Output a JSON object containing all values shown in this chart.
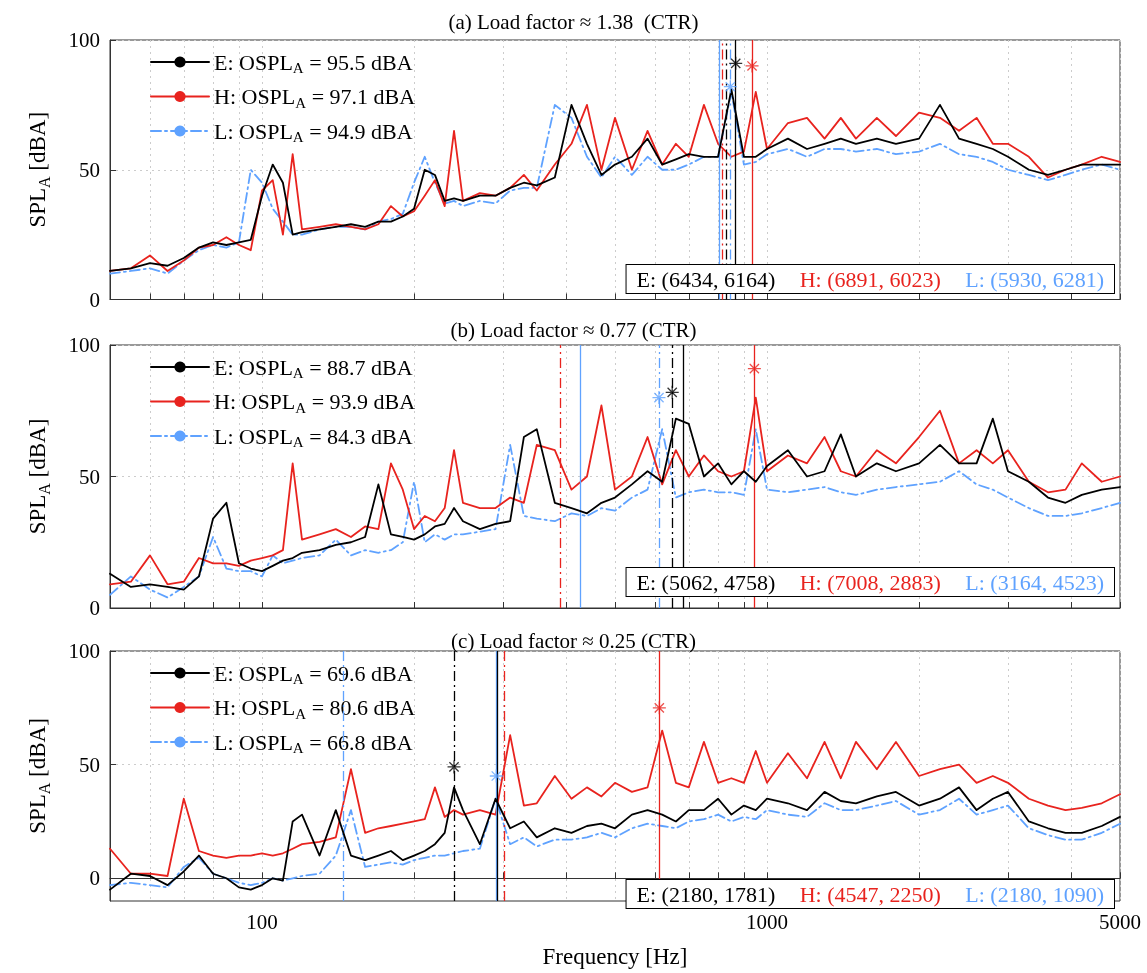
{
  "chart_data": [
    {
      "type": "line",
      "title": "(a) Load factor ≈ 1.38  (CTR)",
      "ylabel": "SPL$_{A}$ [dBA]",
      "x": [
        50,
        55,
        60,
        65,
        70,
        75,
        80,
        85,
        90,
        95,
        100,
        105,
        110,
        115,
        120,
        130,
        140,
        150,
        160,
        170,
        180,
        190,
        200,
        210,
        220,
        230,
        240,
        250,
        270,
        290,
        310,
        330,
        350,
        380,
        410,
        440,
        470,
        500,
        540,
        580,
        620,
        660,
        700,
        750,
        800,
        850,
        900,
        950,
        1000,
        1100,
        1200,
        1300,
        1400,
        1500,
        1650,
        1800,
        2000,
        2200,
        2400,
        2600,
        2800,
        3000,
        3300,
        3600,
        3900,
        4200,
        4600,
        5000
      ],
      "series": [
        {
          "name": "E: OSPL$_{A}$ = 95.5 dBA",
          "color": "#000000",
          "line_style": "solid",
          "values": [
            11,
            12,
            14,
            13,
            16,
            20,
            22,
            21,
            22,
            23,
            40,
            52,
            45,
            25,
            26,
            27,
            28,
            29,
            28,
            30,
            30,
            32,
            35,
            50,
            48,
            38,
            39,
            38,
            40,
            40,
            43,
            45,
            44,
            47,
            75,
            60,
            48,
            52,
            55,
            62,
            52,
            54,
            56,
            55,
            55,
            81,
            55,
            55,
            58,
            62,
            58,
            60,
            62,
            60,
            62,
            60,
            62,
            75,
            62,
            60,
            58,
            55,
            50,
            48,
            50,
            52,
            52,
            52
          ]
        },
        {
          "name": "H: OSPL$_{A}$ = 97.1 dBA",
          "color": "#e8231e",
          "line_style": "solid",
          "values": [
            11,
            12,
            17,
            11,
            15,
            20,
            21,
            24,
            21,
            19,
            42,
            46,
            25,
            56,
            27,
            28,
            29,
            28,
            27,
            29,
            36,
            32,
            34,
            40,
            46,
            36,
            65,
            38,
            41,
            40,
            43,
            48,
            42,
            52,
            60,
            75,
            50,
            70,
            50,
            65,
            52,
            60,
            55,
            75,
            60,
            55,
            57,
            80,
            58,
            68,
            70,
            62,
            70,
            62,
            70,
            63,
            72,
            70,
            65,
            70,
            60,
            60,
            55,
            47,
            50,
            52,
            55,
            53
          ]
        },
        {
          "name": "L: OSPL$_{A}$ = 94.9 dBA",
          "color": "#5fa2ff",
          "line_style": "dashed",
          "values": [
            10,
            11,
            12,
            10,
            15,
            19,
            21,
            20,
            22,
            50,
            45,
            35,
            30,
            25,
            25,
            27,
            28,
            28,
            27,
            30,
            31,
            33,
            45,
            55,
            45,
            37,
            38,
            36,
            38,
            37,
            42,
            43,
            43,
            75,
            70,
            55,
            47,
            55,
            48,
            55,
            50,
            50,
            52,
            55,
            55,
            80,
            52,
            53,
            56,
            58,
            55,
            58,
            58,
            57,
            58,
            56,
            57,
            60,
            56,
            55,
            53,
            50,
            48,
            46,
            48,
            50,
            52,
            50
          ]
        },
        {
          "type": "scatter",
          "color": "#000000",
          "marker": "star",
          "x": [
            867
          ],
          "values": [
            91
          ]
        },
        {
          "type": "scatter",
          "color": "#e8231e",
          "marker": "star",
          "x": [
            934
          ],
          "values": [
            90
          ]
        },
        {
          "type": "scatter",
          "color": "#5fa2ff",
          "marker": "star",
          "x": [
            846
          ],
          "values": [
            82
          ]
        }
      ],
      "ref_lines": [
        {
          "axis": "x",
          "value": 805,
          "color": "#5fa2ff",
          "line_style": "solid"
        },
        {
          "axis": "x",
          "value": 815,
          "color": "#e8231e",
          "line_style": "dashed"
        },
        {
          "axis": "x",
          "value": 832,
          "color": "#000000",
          "line_style": "dashed"
        },
        {
          "axis": "x",
          "value": 846,
          "color": "#5fa2ff",
          "line_style": "dashed"
        },
        {
          "axis": "x",
          "value": 867,
          "color": "#000000",
          "line_style": "solid"
        },
        {
          "axis": "x",
          "value": 934,
          "color": "#e8231e",
          "line_style": "solid"
        }
      ],
      "annotations": [
        "E: (6434, 6164)",
        "H: (6891, 6023)",
        "L: (5930, 6281)"
      ],
      "log": "x",
      "xlim": [
        50,
        5000
      ],
      "xticks": [
        {
          "value": 60,
          "label": null
        },
        {
          "value": 70,
          "label": null
        },
        {
          "value": 80,
          "label": null
        },
        {
          "value": 90,
          "label": null
        },
        100,
        {
          "value": 200,
          "label": null
        },
        {
          "value": 300,
          "label": null
        },
        {
          "value": 400,
          "label": null
        },
        {
          "value": 500,
          "label": null
        },
        {
          "value": 600,
          "label": null
        },
        {
          "value": 700,
          "label": null
        },
        {
          "value": 800,
          "label": null
        },
        {
          "value": 900,
          "label": null
        },
        1000,
        {
          "value": 2000,
          "label": null
        },
        {
          "value": 3000,
          "label": null
        },
        {
          "value": 4000,
          "label": null
        },
        5000
      ],
      "ylim": [
        0,
        100
      ],
      "yticks": [
        0,
        50,
        100
      ],
      "tick_labels": "y",
      "grid": true,
      "legend": "top left",
      "marker": "none"
    },
    {
      "type": "line",
      "title": "(b) Load factor ≈ 0.77 (CTR)",
      "ylabel": "SPL$_{A}$ [dBA]",
      "x": [
        50,
        55,
        60,
        65,
        70,
        75,
        80,
        85,
        90,
        95,
        100,
        105,
        110,
        115,
        120,
        130,
        140,
        150,
        160,
        170,
        180,
        190,
        200,
        210,
        220,
        230,
        240,
        250,
        270,
        290,
        310,
        330,
        350,
        380,
        410,
        440,
        470,
        500,
        540,
        580,
        620,
        660,
        700,
        750,
        800,
        850,
        900,
        950,
        1000,
        1100,
        1200,
        1300,
        1400,
        1500,
        1650,
        1800,
        2000,
        2200,
        2400,
        2600,
        2800,
        3000,
        3300,
        3600,
        3900,
        4200,
        4600,
        5000
      ],
      "series": [
        {
          "name": "E: OSPL$_{A}$ = 88.7 dBA",
          "color": "#000000",
          "line_style": "solid",
          "values": [
            13,
            8,
            9,
            8,
            7,
            12,
            34,
            40,
            17,
            15,
            14,
            16,
            18,
            19,
            21,
            22,
            24,
            25,
            27,
            47,
            28,
            27,
            26,
            28,
            31,
            32,
            38,
            33,
            30,
            32,
            33,
            65,
            68,
            40,
            38,
            36,
            40,
            42,
            47,
            52,
            48,
            72,
            70,
            50,
            55,
            47,
            52,
            48,
            54,
            60,
            50,
            52,
            66,
            50,
            55,
            52,
            55,
            62,
            55,
            55,
            72,
            52,
            48,
            42,
            40,
            43,
            45,
            46
          ]
        },
        {
          "name": "H: OSPL$_{A}$ = 93.9 dBA",
          "color": "#e8231e",
          "line_style": "solid",
          "values": [
            9,
            10,
            20,
            9,
            10,
            19,
            17,
            17,
            16,
            18,
            19,
            20,
            22,
            55,
            26,
            28,
            30,
            27,
            31,
            30,
            55,
            45,
            30,
            35,
            33,
            38,
            60,
            40,
            38,
            38,
            42,
            40,
            62,
            60,
            45,
            50,
            77,
            45,
            50,
            65,
            47,
            60,
            50,
            58,
            52,
            50,
            52,
            80,
            52,
            58,
            55,
            65,
            52,
            50,
            60,
            55,
            65,
            75,
            55,
            60,
            55,
            60,
            48,
            44,
            45,
            55,
            48,
            50
          ]
        },
        {
          "name": "L: OSPL$_{A}$ = 84.3 dBA",
          "color": "#5fa2ff",
          "line_style": "dashed",
          "values": [
            5,
            12,
            7,
            4,
            8,
            12,
            27,
            15,
            14,
            14,
            12,
            20,
            17,
            18,
            19,
            20,
            26,
            20,
            22,
            21,
            22,
            25,
            48,
            25,
            28,
            26,
            28,
            28,
            29,
            30,
            62,
            35,
            34,
            33,
            36,
            35,
            38,
            37,
            42,
            45,
            68,
            42,
            44,
            45,
            44,
            44,
            43,
            68,
            45,
            44,
            45,
            46,
            44,
            43,
            45,
            46,
            47,
            48,
            52,
            47,
            45,
            42,
            38,
            35,
            35,
            36,
            38,
            40
          ]
        },
        {
          "type": "scatter",
          "color": "#000000",
          "marker": "star",
          "x": [
            649
          ],
          "values": [
            82
          ]
        },
        {
          "type": "scatter",
          "color": "#e8231e",
          "marker": "star",
          "x": [
            944
          ],
          "values": [
            91
          ]
        },
        {
          "type": "scatter",
          "color": "#5fa2ff",
          "marker": "star",
          "x": [
            611
          ],
          "values": [
            80
          ]
        }
      ],
      "ref_lines": [
        {
          "axis": "x",
          "value": 389,
          "color": "#e8231e",
          "line_style": "dashed"
        },
        {
          "axis": "x",
          "value": 426,
          "color": "#5fa2ff",
          "line_style": "solid"
        },
        {
          "axis": "x",
          "value": 611,
          "color": "#5fa2ff",
          "line_style": "dashed"
        },
        {
          "axis": "x",
          "value": 649,
          "color": "#000000",
          "line_style": "dashed"
        },
        {
          "axis": "x",
          "value": 683,
          "color": "#000000",
          "line_style": "solid"
        },
        {
          "axis": "x",
          "value": 944,
          "color": "#e8231e",
          "line_style": "solid"
        }
      ],
      "annotations": [
        "E: (5062, 4758)",
        "H: (7008, 2883)",
        "L: (3164, 4523)"
      ],
      "log": "x",
      "xlim": [
        50,
        5000
      ],
      "xticks": [
        {
          "value": 60,
          "label": null
        },
        {
          "value": 70,
          "label": null
        },
        {
          "value": 80,
          "label": null
        },
        {
          "value": 90,
          "label": null
        },
        100,
        {
          "value": 200,
          "label": null
        },
        {
          "value": 300,
          "label": null
        },
        {
          "value": 400,
          "label": null
        },
        {
          "value": 500,
          "label": null
        },
        {
          "value": 600,
          "label": null
        },
        {
          "value": 700,
          "label": null
        },
        {
          "value": 800,
          "label": null
        },
        {
          "value": 900,
          "label": null
        },
        1000,
        {
          "value": 2000,
          "label": null
        },
        {
          "value": 3000,
          "label": null
        },
        {
          "value": 4000,
          "label": null
        },
        5000
      ],
      "ylim": [
        0,
        100
      ],
      "yticks": [
        0,
        50,
        100
      ],
      "tick_labels": "y",
      "grid": true,
      "legend": "top left",
      "marker": "none"
    },
    {
      "type": "line",
      "title": "(c) Load factor ≈ 0.25 (CTR)",
      "xlabel": "Frequency [Hz]",
      "ylabel": "SPL$_{A}$ [dBA]",
      "x": [
        50,
        55,
        60,
        65,
        70,
        75,
        80,
        85,
        90,
        95,
        100,
        105,
        110,
        115,
        120,
        130,
        140,
        150,
        160,
        170,
        180,
        190,
        200,
        210,
        220,
        230,
        240,
        250,
        270,
        290,
        310,
        330,
        350,
        380,
        410,
        440,
        470,
        500,
        540,
        580,
        620,
        660,
        700,
        750,
        800,
        850,
        900,
        950,
        1000,
        1100,
        1200,
        1300,
        1400,
        1500,
        1650,
        1800,
        2000,
        2200,
        2400,
        2600,
        2800,
        3000,
        3300,
        3600,
        3900,
        4200,
        4600,
        5000
      ],
      "series": [
        {
          "name": "E: OSPL$_{A}$ = 69.6 dBA",
          "color": "#000000",
          "line_style": "solid",
          "values": [
            -5,
            2,
            1,
            -3,
            3,
            10,
            2,
            0,
            -4,
            -5,
            -3,
            0,
            -1,
            25,
            28,
            10,
            30,
            10,
            8,
            10,
            12,
            8,
            10,
            12,
            15,
            20,
            40,
            30,
            15,
            35,
            22,
            25,
            18,
            22,
            20,
            23,
            24,
            22,
            28,
            30,
            28,
            25,
            30,
            30,
            35,
            28,
            32,
            30,
            35,
            33,
            30,
            38,
            34,
            33,
            36,
            38,
            32,
            35,
            40,
            30,
            35,
            38,
            25,
            22,
            20,
            20,
            23,
            27
          ]
        },
        {
          "name": "H: OSPL$_{A}$ = 80.6 dBA",
          "color": "#e8231e",
          "line_style": "solid",
          "values": [
            13,
            2,
            2,
            1,
            35,
            12,
            10,
            9,
            10,
            10,
            11,
            10,
            11,
            13,
            15,
            16,
            18,
            48,
            20,
            22,
            23,
            24,
            25,
            26,
            40,
            27,
            30,
            28,
            30,
            28,
            63,
            32,
            33,
            45,
            35,
            40,
            36,
            42,
            38,
            40,
            65,
            42,
            40,
            60,
            42,
            44,
            42,
            56,
            42,
            55,
            44,
            60,
            44,
            60,
            48,
            60,
            45,
            48,
            50,
            42,
            45,
            42,
            35,
            32,
            30,
            31,
            33,
            37
          ]
        },
        {
          "name": "L: OSPL$_{A}$ = 66.8 dBA",
          "color": "#5fa2ff",
          "line_style": "dashed",
          "values": [
            -3,
            -2,
            -3,
            -4,
            5,
            9,
            2,
            0,
            -2,
            -3,
            -2,
            0,
            -1,
            0,
            1,
            2,
            10,
            30,
            5,
            6,
            7,
            6,
            8,
            9,
            10,
            10,
            11,
            12,
            13,
            35,
            15,
            18,
            14,
            17,
            17,
            18,
            20,
            18,
            22,
            24,
            23,
            22,
            25,
            26,
            28,
            25,
            27,
            26,
            30,
            28,
            27,
            33,
            30,
            30,
            32,
            34,
            28,
            30,
            35,
            28,
            30,
            32,
            22,
            19,
            17,
            17,
            20,
            24
          ]
        },
        {
          "type": "scatter",
          "color": "#000000",
          "marker": "star",
          "x": [
            240
          ],
          "values": [
            49
          ]
        },
        {
          "type": "scatter",
          "color": "#e8231e",
          "marker": "star",
          "x": [
            612
          ],
          "values": [
            75
          ]
        },
        {
          "type": "scatter",
          "color": "#5fa2ff",
          "marker": "star",
          "x": [
            291
          ],
          "values": [
            45
          ]
        }
      ],
      "ref_lines": [
        {
          "axis": "x",
          "value": 145,
          "color": "#5fa2ff",
          "line_style": "dashed"
        },
        {
          "axis": "x",
          "value": 240,
          "color": "#000000",
          "line_style": "dashed"
        },
        {
          "axis": "x",
          "value": 291,
          "color": "#5fa2ff",
          "line_style": "solid"
        },
        {
          "axis": "x",
          "value": 292,
          "color": "#000000",
          "line_style": "solid"
        },
        {
          "axis": "x",
          "value": 302,
          "color": "#e8231e",
          "line_style": "dashed"
        },
        {
          "axis": "x",
          "value": 612,
          "color": "#e8231e",
          "line_style": "solid"
        }
      ],
      "annotations": [
        "E: (2180, 1781)",
        "H: (4547, 2250)",
        "L: (2180, 1090)"
      ],
      "log": "x",
      "xlim": [
        50,
        5000
      ],
      "xticks": [
        {
          "value": 60,
          "label": null
        },
        {
          "value": 70,
          "label": null
        },
        {
          "value": 80,
          "label": null
        },
        {
          "value": 90,
          "label": null
        },
        100,
        {
          "value": 200,
          "label": null
        },
        {
          "value": 300,
          "label": null
        },
        {
          "value": 400,
          "label": null
        },
        {
          "value": 500,
          "label": null
        },
        {
          "value": 600,
          "label": null
        },
        {
          "value": 700,
          "label": null
        },
        {
          "value": 800,
          "label": null
        },
        {
          "value": 900,
          "label": null
        },
        1000,
        {
          "value": 2000,
          "label": null
        },
        {
          "value": 3000,
          "label": null
        },
        {
          "value": 4000,
          "label": null
        },
        5000
      ],
      "ylim": [
        -10,
        100
      ],
      "yticks": [
        0,
        50,
        100
      ],
      "grid": true,
      "legend": "top left",
      "marker": "none"
    }
  ]
}
